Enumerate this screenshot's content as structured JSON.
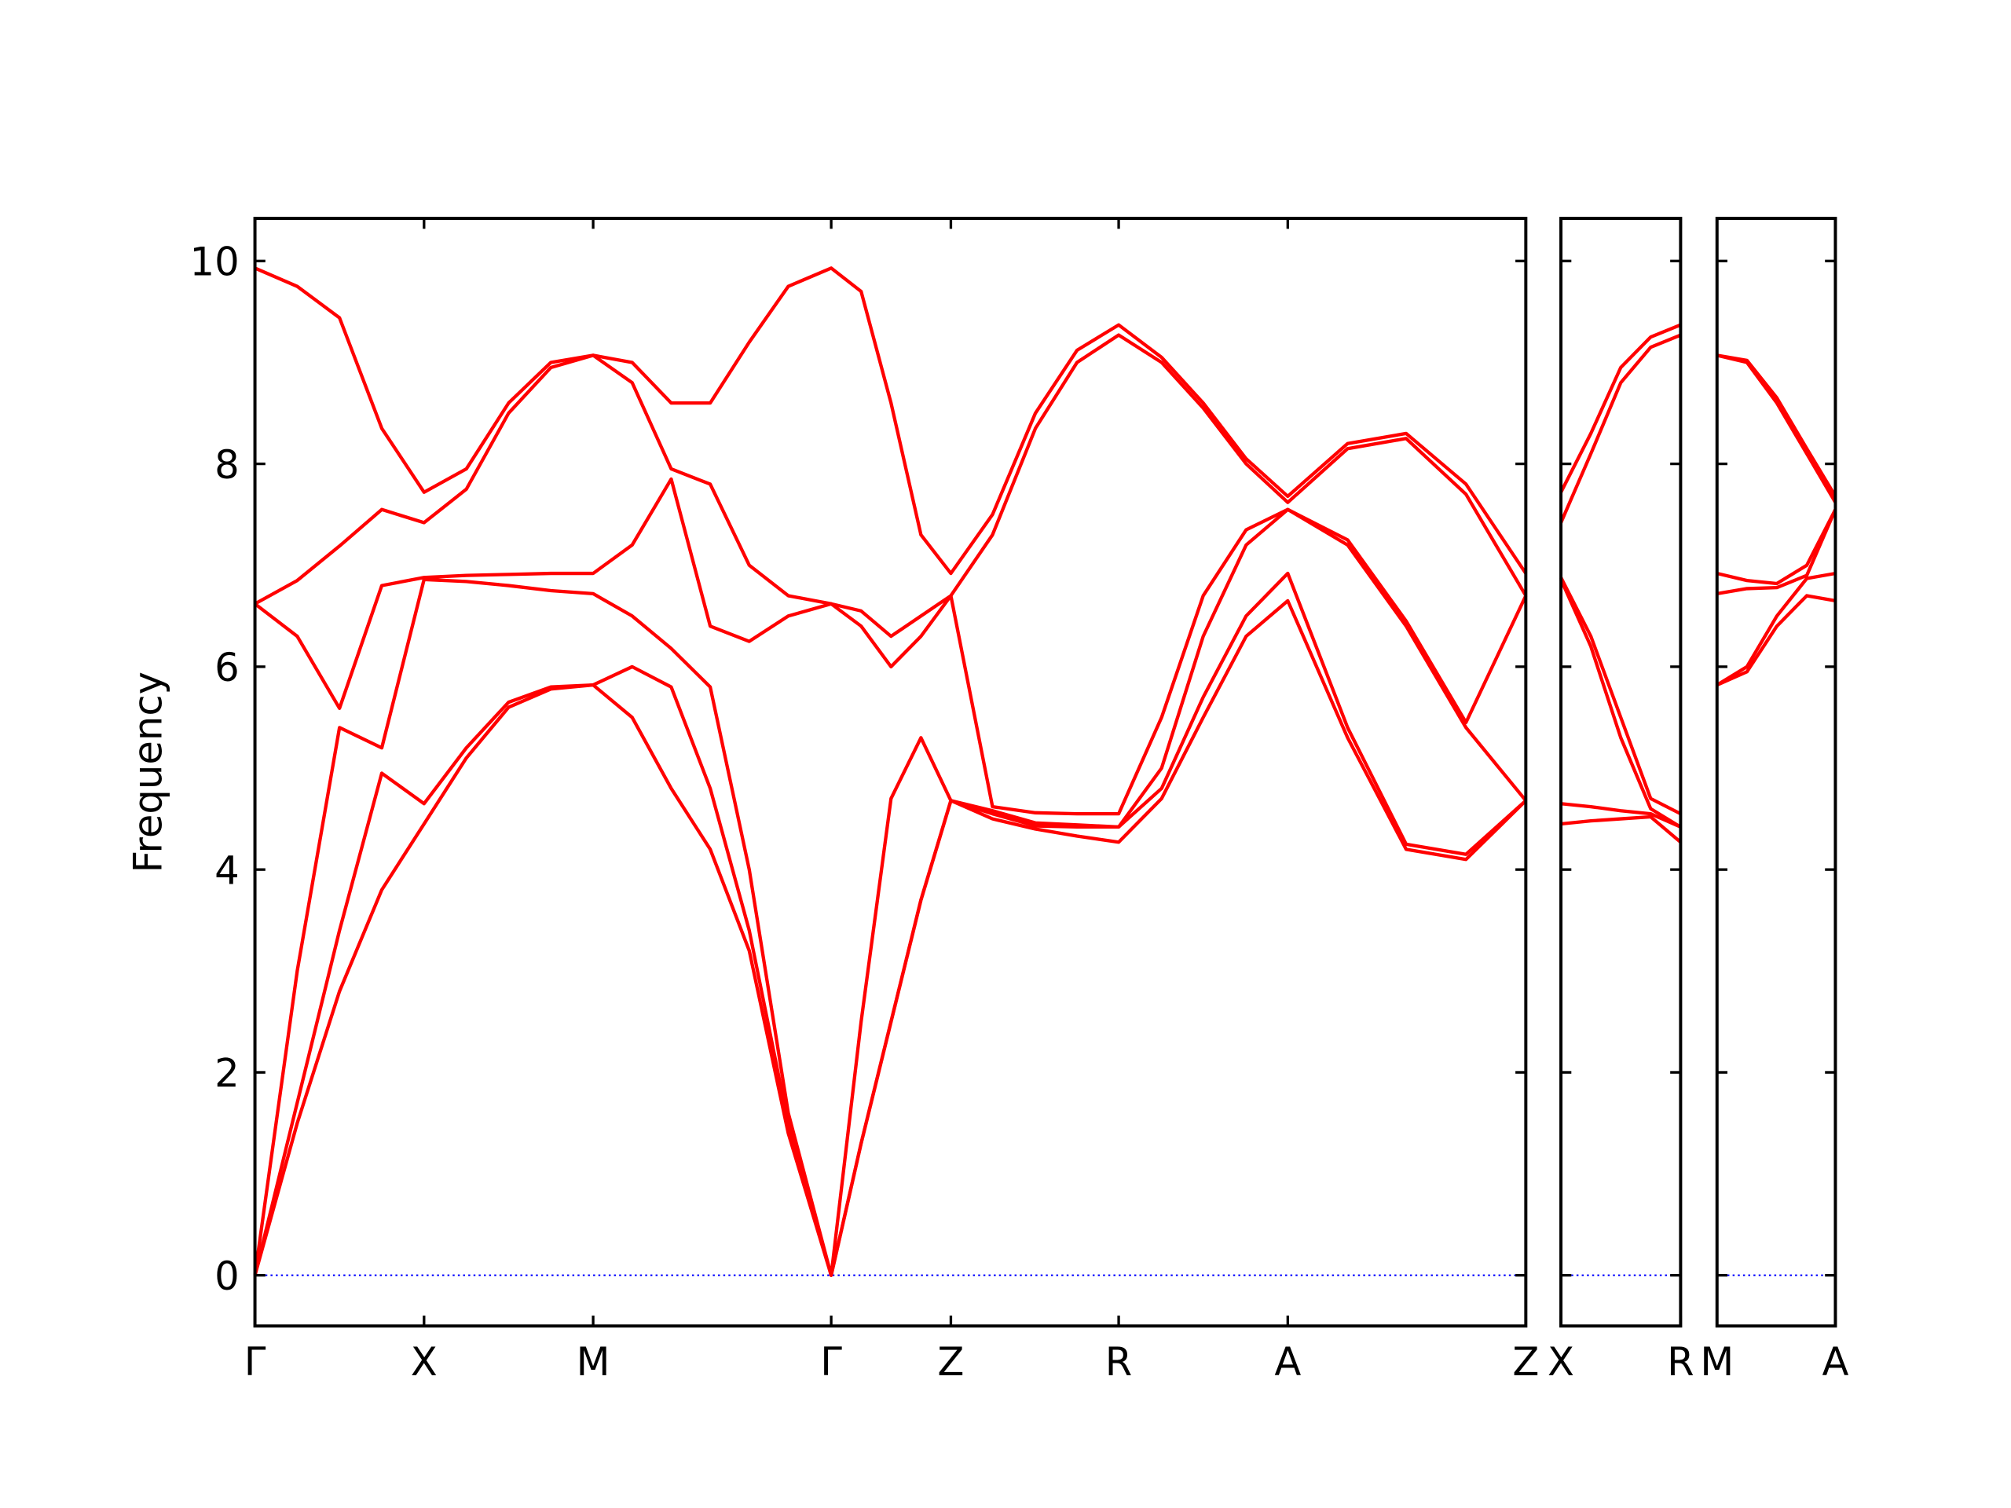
{
  "chart_data": [
    {
      "type": "line",
      "ylabel": "Frequency",
      "show_ytick_labels": true,
      "xlim": [
        0,
        9.77
      ],
      "xticks": [
        {
          "value": 0,
          "label": "Γ"
        },
        {
          "value": 1.3,
          "label": "X"
        },
        {
          "value": 2.6,
          "label": "M"
        },
        {
          "value": 4.43,
          "label": "Γ"
        },
        {
          "value": 5.35,
          "label": "Z"
        },
        {
          "value": 6.64,
          "label": "R"
        },
        {
          "value": 7.94,
          "label": "A"
        },
        {
          "value": 9.77,
          "label": "Z"
        }
      ],
      "ylim": [
        -0.5,
        10.42
      ],
      "yticks": [
        0,
        2,
        4,
        6,
        8,
        10
      ],
      "reference_line": {
        "value": 0,
        "color": "#0000ff"
      },
      "x": [
        0,
        0.325,
        0.65,
        0.975,
        1.3,
        1.625,
        1.95,
        2.275,
        2.6,
        2.9,
        3.2,
        3.5,
        3.8,
        4.1,
        4.43,
        4.66,
        4.89,
        5.12,
        5.35,
        5.67,
        6.0,
        6.32,
        6.64,
        6.97,
        7.29,
        7.62,
        7.94,
        8.4,
        8.85,
        9.31,
        9.77
      ],
      "series": [
        {
          "color": "#ff0000",
          "values": [
            0,
            1.5,
            2.8,
            3.8,
            4.45,
            5.1,
            5.6,
            5.78,
            5.82,
            5.5,
            4.8,
            4.2,
            3.2,
            1.4,
            0,
            1.3,
            2.5,
            3.7,
            4.68,
            4.5,
            4.4,
            4.33,
            4.27,
            4.7,
            5.5,
            6.3,
            6.65,
            5.3,
            4.2,
            4.1,
            4.68
          ]
        },
        {
          "color": "#ff0000",
          "values": [
            0,
            1.7,
            3.4,
            4.95,
            4.65,
            5.2,
            5.65,
            5.8,
            5.82,
            6.0,
            5.8,
            4.8,
            3.4,
            1.5,
            0,
            1.3,
            2.5,
            3.7,
            4.68,
            4.55,
            4.43,
            4.42,
            4.42,
            4.8,
            5.7,
            6.5,
            6.92,
            5.4,
            4.25,
            4.15,
            4.68
          ]
        },
        {
          "color": "#ff0000",
          "values": [
            0,
            3.0,
            5.4,
            5.2,
            6.86,
            6.84,
            6.8,
            6.75,
            6.72,
            6.5,
            6.18,
            5.8,
            4.0,
            1.6,
            0,
            2.5,
            4.7,
            5.3,
            4.68,
            4.58,
            4.46,
            4.44,
            4.42,
            5.0,
            6.3,
            7.2,
            7.55,
            7.2,
            6.4,
            5.4,
            4.68
          ]
        },
        {
          "color": "#ff0000",
          "values": [
            6.62,
            6.3,
            5.59,
            6.8,
            6.88,
            6.9,
            6.91,
            6.92,
            6.92,
            7.2,
            7.85,
            6.4,
            6.25,
            6.5,
            6.62,
            6.4,
            6.0,
            6.3,
            6.7,
            4.62,
            4.56,
            4.55,
            4.55,
            5.5,
            6.7,
            7.35,
            7.55,
            7.25,
            6.45,
            5.45,
            6.7
          ]
        },
        {
          "color": "#ff0000",
          "values": [
            6.62,
            6.85,
            7.19,
            7.55,
            7.42,
            7.75,
            8.5,
            8.95,
            9.07,
            8.8,
            7.95,
            7.8,
            7.0,
            6.7,
            6.62,
            6.55,
            6.3,
            6.5,
            6.7,
            7.3,
            8.35,
            9.0,
            9.27,
            9.0,
            8.55,
            8.0,
            7.62,
            8.15,
            8.25,
            7.7,
            6.7
          ]
        },
        {
          "color": "#ff0000",
          "values": [
            9.93,
            9.75,
            9.44,
            8.35,
            7.72,
            7.95,
            8.6,
            9.0,
            9.07,
            9.0,
            8.6,
            8.6,
            9.2,
            9.75,
            9.93,
            9.7,
            8.6,
            7.3,
            6.92,
            7.5,
            8.5,
            9.12,
            9.37,
            9.05,
            8.6,
            8.05,
            7.68,
            8.2,
            8.3,
            7.8,
            6.92
          ]
        }
      ]
    },
    {
      "type": "line",
      "show_ytick_labels": false,
      "xlim": [
        0,
        0.92
      ],
      "xticks": [
        {
          "value": 0,
          "label": "X"
        },
        {
          "value": 0.92,
          "label": "R"
        }
      ],
      "ylim": [
        -0.5,
        10.42
      ],
      "yticks": [
        0,
        2,
        4,
        6,
        8,
        10
      ],
      "reference_line": {
        "value": 0,
        "color": "#0000ff"
      },
      "x": [
        0,
        0.23,
        0.46,
        0.69,
        0.92
      ],
      "series": [
        {
          "color": "#ff0000",
          "values": [
            4.45,
            4.48,
            4.5,
            4.52,
            4.27
          ]
        },
        {
          "color": "#ff0000",
          "values": [
            4.65,
            4.62,
            4.58,
            4.55,
            4.42
          ]
        },
        {
          "color": "#ff0000",
          "values": [
            6.86,
            6.2,
            5.3,
            4.6,
            4.42
          ]
        },
        {
          "color": "#ff0000",
          "values": [
            6.88,
            6.3,
            5.5,
            4.7,
            4.55
          ]
        },
        {
          "color": "#ff0000",
          "values": [
            7.42,
            8.1,
            8.8,
            9.15,
            9.27
          ]
        },
        {
          "color": "#ff0000",
          "values": [
            7.72,
            8.3,
            8.95,
            9.25,
            9.37
          ]
        }
      ]
    },
    {
      "type": "line",
      "show_ytick_labels": false,
      "xlim": [
        0,
        0.91
      ],
      "xticks": [
        {
          "value": 0,
          "label": "M"
        },
        {
          "value": 0.91,
          "label": "A"
        }
      ],
      "ylim": [
        -0.5,
        10.42
      ],
      "yticks": [
        0,
        2,
        4,
        6,
        8,
        10
      ],
      "reference_line": {
        "value": 0,
        "color": "#0000ff"
      },
      "x": [
        0,
        0.23,
        0.46,
        0.69,
        0.91
      ],
      "series": [
        {
          "color": "#ff0000",
          "values": [
            5.82,
            5.95,
            6.4,
            6.7,
            6.65
          ]
        },
        {
          "color": "#ff0000",
          "values": [
            5.82,
            6.0,
            6.5,
            6.87,
            6.92
          ]
        },
        {
          "color": "#ff0000",
          "values": [
            6.72,
            6.77,
            6.78,
            6.9,
            7.55
          ]
        },
        {
          "color": "#ff0000",
          "values": [
            6.92,
            6.85,
            6.82,
            7.0,
            7.55
          ]
        },
        {
          "color": "#ff0000",
          "values": [
            9.07,
            9.0,
            8.6,
            8.1,
            7.62
          ]
        },
        {
          "color": "#ff0000",
          "values": [
            9.07,
            9.02,
            8.65,
            8.15,
            7.68
          ]
        }
      ]
    }
  ]
}
